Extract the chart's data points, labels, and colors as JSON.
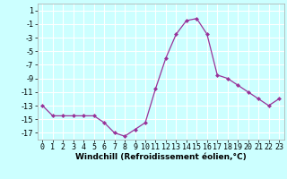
{
  "x": [
    0,
    1,
    2,
    3,
    4,
    5,
    6,
    7,
    8,
    9,
    10,
    11,
    12,
    13,
    14,
    15,
    16,
    17,
    18,
    19,
    20,
    21,
    22,
    23
  ],
  "y": [
    -13,
    -14.5,
    -14.5,
    -14.5,
    -14.5,
    -14.5,
    -15.5,
    -17,
    -17.5,
    -16.5,
    -15.5,
    -10.5,
    -6,
    -2.5,
    -0.5,
    -0.2,
    -2.5,
    -8.5,
    -9,
    -10,
    -11,
    -12,
    -13,
    -12
  ],
  "line_color": "#993399",
  "marker_color": "#993399",
  "bg_color": "#ccffff",
  "grid_color": "#ffffff",
  "xlabel": "Windchill (Refroidissement éolien,°C)",
  "xlabel_fontsize": 6.5,
  "tick_fontsize": 6.0,
  "xlim": [
    -0.5,
    23.5
  ],
  "ylim": [
    -18,
    2
  ],
  "yticks": [
    1,
    -1,
    -3,
    -5,
    -7,
    -9,
    -11,
    -13,
    -15,
    -17
  ],
  "xticks": [
    0,
    1,
    2,
    3,
    4,
    5,
    6,
    7,
    8,
    9,
    10,
    11,
    12,
    13,
    14,
    15,
    16,
    17,
    18,
    19,
    20,
    21,
    22,
    23
  ]
}
